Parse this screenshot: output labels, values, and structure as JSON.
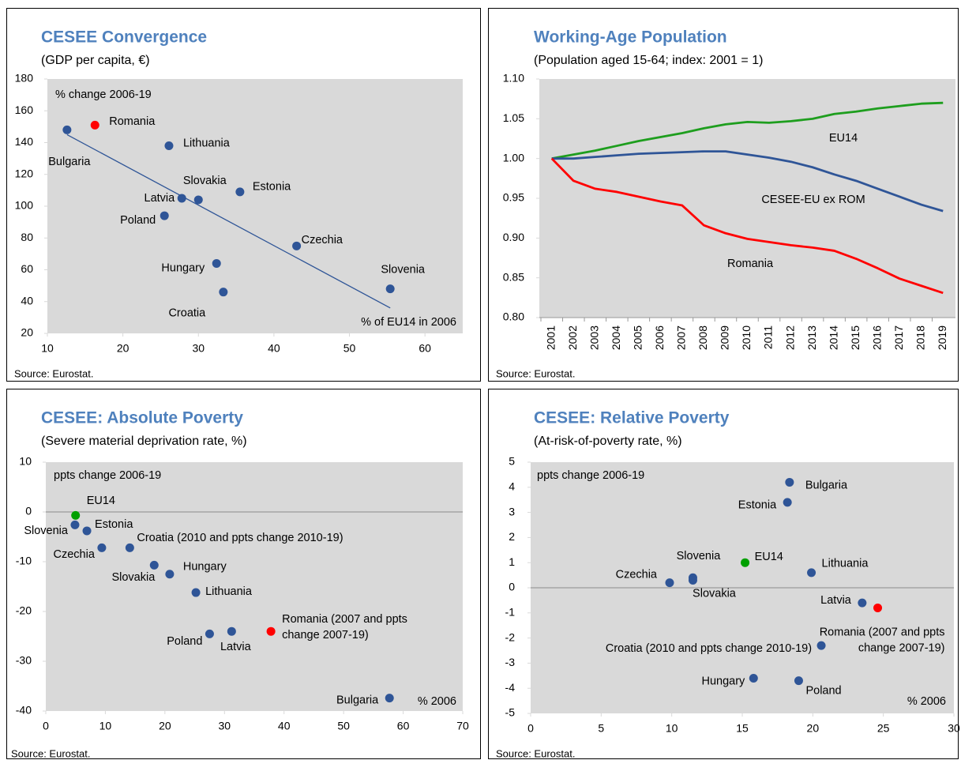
{
  "chart_data": [
    {
      "type": "scatter",
      "title": "CESEE Convergence",
      "subtitle": "(GDP per capita, €)",
      "source": "Source: Eurostat.",
      "annotations": [
        "% change 2006-19",
        "% of EU14 in 2006"
      ],
      "xlim": [
        10,
        65
      ],
      "xticks": [
        10,
        20,
        30,
        40,
        50,
        60
      ],
      "ylim": [
        20,
        180
      ],
      "yticks": [
        20,
        40,
        60,
        80,
        100,
        120,
        140,
        160,
        180
      ],
      "points": [
        {
          "label": [
            "Bulgaria"
          ],
          "x": 12.6,
          "y": 148,
          "color": "#2f5597"
        },
        {
          "label": [
            "Romania"
          ],
          "x": 16.3,
          "y": 151,
          "color": "#ff0000"
        },
        {
          "label": [
            "Lithuania"
          ],
          "x": 26.1,
          "y": 138,
          "color": "#2f5597"
        },
        {
          "label": [
            "Latvia"
          ],
          "x": 27.8,
          "y": 105,
          "color": "#2f5597"
        },
        {
          "label": [
            "Slovakia"
          ],
          "x": 30.0,
          "y": 104,
          "color": "#2f5597"
        },
        {
          "label": [
            "Estonia"
          ],
          "x": 35.5,
          "y": 109,
          "color": "#2f5597"
        },
        {
          "label": [
            "Poland"
          ],
          "x": 25.5,
          "y": 94,
          "color": "#2f5597"
        },
        {
          "label": [
            "Czechia"
          ],
          "x": 43.0,
          "y": 75,
          "color": "#2f5597"
        },
        {
          "label": [
            "Hungary"
          ],
          "x": 32.4,
          "y": 64,
          "color": "#2f5597"
        },
        {
          "label": [
            "Croatia"
          ],
          "x": 33.3,
          "y": 46,
          "color": "#2f5597"
        },
        {
          "label": [
            "Slovenia"
          ],
          "x": 55.4,
          "y": 48,
          "color": "#2f5597"
        }
      ],
      "trendline": {
        "x": [
          12.6,
          55.4
        ],
        "values": [
          145,
          36
        ],
        "color": "#2f5597"
      }
    },
    {
      "type": "line",
      "title": "Working-Age Population",
      "subtitle": "(Population aged 15-64; index: 2001 = 1)",
      "source": "Source: Eurostat.",
      "categories": [
        "2001",
        "2002",
        "2003",
        "2004",
        "2005",
        "2006",
        "2007",
        "2008",
        "2009",
        "2010",
        "2011",
        "2012",
        "2013",
        "2014",
        "2015",
        "2016",
        "2017",
        "2018",
        "2019"
      ],
      "ylim": [
        0.8,
        1.1
      ],
      "yticks": [
        {
          "value": 0.8,
          "label": "0.80"
        },
        {
          "value": 0.85,
          "label": "0.85"
        },
        {
          "value": 0.9,
          "label": "0.90"
        },
        {
          "value": 0.95,
          "label": "0.95"
        },
        {
          "value": 1.0,
          "label": "1.00"
        },
        {
          "value": 1.05,
          "label": "1.05"
        },
        {
          "value": 1.1,
          "label": "1.10"
        }
      ],
      "series": [
        {
          "name": "EU14",
          "color": "#1e9e1e",
          "values": [
            1.0,
            1.005,
            1.01,
            1.016,
            1.022,
            1.027,
            1.032,
            1.038,
            1.043,
            1.046,
            1.045,
            1.047,
            1.05,
            1.056,
            1.059,
            1.063,
            1.066,
            1.069,
            1.07
          ]
        },
        {
          "name": "CESEE-EU ex ROM",
          "color": "#2f5597",
          "values": [
            1.0,
            1.0,
            1.002,
            1.004,
            1.006,
            1.007,
            1.008,
            1.009,
            1.009,
            1.005,
            1.001,
            0.996,
            0.989,
            0.98,
            0.972,
            0.962,
            0.952,
            0.942,
            0.934
          ]
        },
        {
          "name": "Romania",
          "color": "#ff0000",
          "values": [
            1.0,
            0.972,
            0.962,
            0.958,
            0.952,
            0.946,
            0.941,
            0.916,
            0.906,
            0.899,
            0.895,
            0.891,
            0.888,
            0.884,
            0.874,
            0.862,
            0.849,
            0.84,
            0.831
          ]
        }
      ]
    },
    {
      "type": "scatter",
      "title": "CESEE: Absolute Poverty",
      "subtitle": "(Severe material deprivation rate, %)",
      "source": "Source: Eurostat.",
      "annotations": [
        "ppts change 2006-19",
        "% 2006"
      ],
      "zero_line": true,
      "xlim": [
        0,
        70
      ],
      "xticks": [
        0,
        10,
        20,
        30,
        40,
        50,
        60,
        70
      ],
      "ylim": [
        -40,
        10
      ],
      "yticks": [
        -40,
        -30,
        -20,
        -10,
        0,
        10
      ],
      "points": [
        {
          "label": [
            "EU14"
          ],
          "x": 5.0,
          "y": -0.7,
          "color": "#00a000"
        },
        {
          "label": [
            "Slovenia"
          ],
          "x": 4.9,
          "y": -2.6,
          "color": "#2f5597"
        },
        {
          "label": [
            "Estonia"
          ],
          "x": 6.9,
          "y": -3.8,
          "color": "#2f5597"
        },
        {
          "label": [
            "Czechia"
          ],
          "x": 9.4,
          "y": -7.2,
          "color": "#2f5597"
        },
        {
          "label": [
            "Croatia (2010 and ppts change 2010-19)"
          ],
          "x": 14.1,
          "y": -7.2,
          "color": "#2f5597"
        },
        {
          "label": [
            "Slovakia"
          ],
          "x": 18.2,
          "y": -10.7,
          "color": "#2f5597"
        },
        {
          "label": [
            "Hungary"
          ],
          "x": 20.8,
          "y": -12.5,
          "color": "#2f5597"
        },
        {
          "label": [
            "Lithuania"
          ],
          "x": 25.2,
          "y": -16.2,
          "color": "#2f5597"
        },
        {
          "label": [
            "Poland"
          ],
          "x": 27.5,
          "y": -24.5,
          "color": "#2f5597"
        },
        {
          "label": [
            "Latvia"
          ],
          "x": 31.2,
          "y": -24.0,
          "color": "#2f5597"
        },
        {
          "label": [
            "Romania (2007 and ppts",
            "change 2007-19)"
          ],
          "x": 37.8,
          "y": -24.0,
          "color": "#ff0000"
        },
        {
          "label": [
            "Bulgaria"
          ],
          "x": 57.7,
          "y": -37.4,
          "color": "#2f5597"
        }
      ]
    },
    {
      "type": "scatter",
      "title": "CESEE: Relative Poverty",
      "subtitle": "(At-risk-of-poverty rate, %)",
      "source": "Source: Eurostat.",
      "annotations": [
        "ppts change 2006-19",
        "% 2006"
      ],
      "zero_line": true,
      "xlim": [
        0,
        30
      ],
      "xticks": [
        0,
        5,
        10,
        15,
        20,
        25,
        30
      ],
      "ylim": [
        -5,
        5
      ],
      "yticks": [
        -5,
        -4,
        -3,
        -2,
        -1,
        0,
        1,
        2,
        3,
        4,
        5
      ],
      "points": [
        {
          "label": [
            "Bulgaria"
          ],
          "x": 18.35,
          "y": 4.2,
          "color": "#2f5597"
        },
        {
          "label": [
            "Estonia"
          ],
          "x": 18.2,
          "y": 3.4,
          "color": "#2f5597"
        },
        {
          "label": [
            "Slovenia"
          ],
          "x": 11.5,
          "y": 0.4,
          "color": "#2f5597"
        },
        {
          "label": [
            "Slovakia"
          ],
          "x": 11.5,
          "y": 0.3,
          "color": "#2f5597"
        },
        {
          "label": [
            "Czechia"
          ],
          "x": 9.85,
          "y": 0.2,
          "color": "#2f5597"
        },
        {
          "label": [
            "EU14"
          ],
          "x": 15.2,
          "y": 1.0,
          "color": "#00a000"
        },
        {
          "label": [
            "Lithuania"
          ],
          "x": 19.9,
          "y": 0.6,
          "color": "#2f5597"
        },
        {
          "label": [
            "Latvia"
          ],
          "x": 23.5,
          "y": -0.6,
          "color": "#2f5597"
        },
        {
          "label": [
            "Romania (2007 and ppts",
            "change 2007-19)"
          ],
          "x": 24.6,
          "y": -0.8,
          "color": "#ff0000"
        },
        {
          "label": [
            "Croatia (2010 and ppts change 2010-19)"
          ],
          "x": 20.6,
          "y": -2.3,
          "color": "#2f5597"
        },
        {
          "label": [
            "Hungary"
          ],
          "x": 15.8,
          "y": -3.6,
          "color": "#2f5597"
        },
        {
          "label": [
            "Poland"
          ],
          "x": 19.0,
          "y": -3.7,
          "color": "#2f5597"
        }
      ]
    }
  ]
}
